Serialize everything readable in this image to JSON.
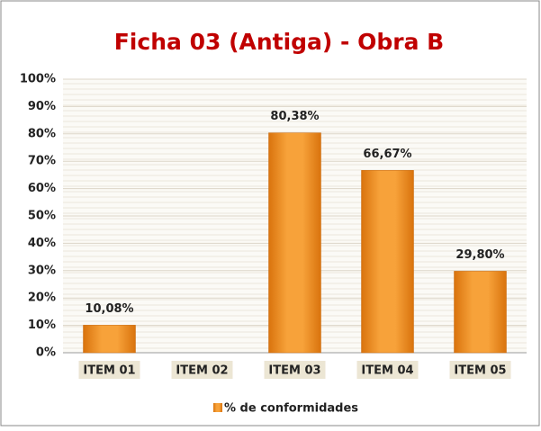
{
  "chart_data": {
    "type": "bar",
    "title": "Ficha 03 (Antiga) - Obra B",
    "categories": [
      "ITEM 01",
      "ITEM 02",
      "ITEM 03",
      "ITEM 04",
      "ITEM 05"
    ],
    "series": [
      {
        "name": "% de conformidades",
        "color": "#f39a2b",
        "values": [
          10.08,
          null,
          80.38,
          66.67,
          29.8
        ],
        "value_labels": [
          "10,08%",
          null,
          "80,38%",
          "66,67%",
          "29,80%"
        ]
      }
    ],
    "ylim": [
      0,
      100
    ],
    "yticks": [
      {
        "value": 0,
        "label": "0%"
      },
      {
        "value": 10,
        "label": "10%"
      },
      {
        "value": 20,
        "label": "20%"
      },
      {
        "value": 30,
        "label": "30%"
      },
      {
        "value": 40,
        "label": "40%"
      },
      {
        "value": 50,
        "label": "50%"
      },
      {
        "value": 60,
        "label": "60%"
      },
      {
        "value": 70,
        "label": "70%"
      },
      {
        "value": 80,
        "label": "80%"
      },
      {
        "value": 90,
        "label": "90%"
      },
      {
        "value": 100,
        "label": "100%"
      }
    ],
    "grid": true,
    "legend": "bottom"
  }
}
